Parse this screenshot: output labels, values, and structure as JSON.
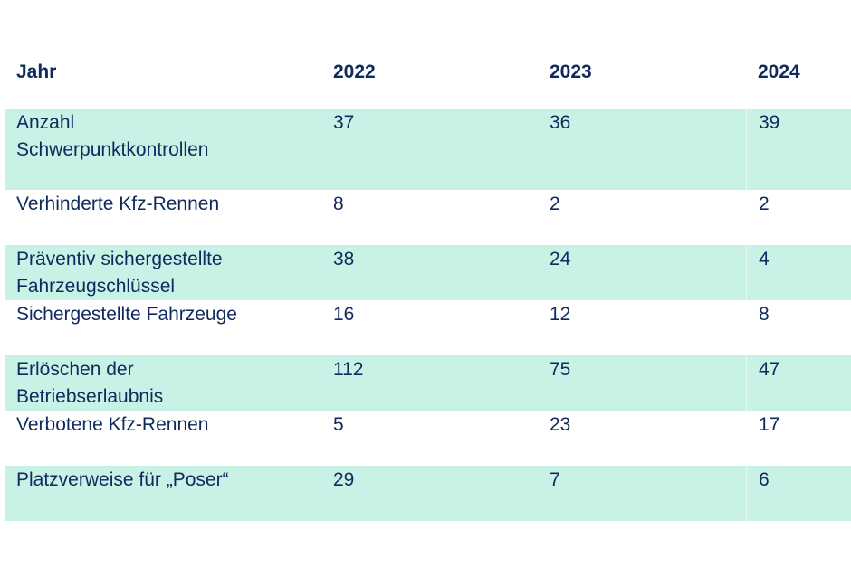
{
  "table": {
    "headers": [
      "Jahr",
      "2022",
      "2023",
      "2024"
    ],
    "rows": [
      {
        "label": "Anzahl\nSchwerpunktkontrollen",
        "values": [
          "37",
          "36",
          "39"
        ],
        "shaded": true
      },
      {
        "label": "Verhinderte Kfz-Rennen",
        "values": [
          "8",
          "2",
          "2"
        ],
        "shaded": false
      },
      {
        "label": "Präventiv sichergestellte\nFahrzeugschlüssel",
        "values": [
          "38",
          "24",
          "4"
        ],
        "shaded": true
      },
      {
        "label": "Sichergestellte Fahrzeuge",
        "values": [
          "16",
          "12",
          "8"
        ],
        "shaded": false
      },
      {
        "label": "Erlöschen der\nBetriebserlaubnis",
        "values": [
          "112",
          "75",
          "47"
        ],
        "shaded": true
      },
      {
        "label": "Verbotene Kfz-Rennen",
        "values": [
          "5",
          "23",
          "17"
        ],
        "shaded": false
      },
      {
        "label": "Platzverweise für „Poser“",
        "values": [
          "29",
          "7",
          "6"
        ],
        "shaded": true
      }
    ]
  }
}
